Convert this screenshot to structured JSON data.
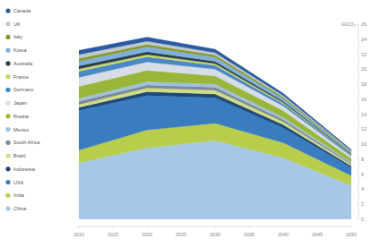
{
  "chart_data": {
    "type": "area",
    "stacked": true,
    "y_label": "GtCO₂",
    "x": [
      2010,
      2020,
      2030,
      2040,
      2050
    ],
    "xlim": [
      2010,
      2050
    ],
    "xticks": [
      2010,
      2015,
      2020,
      2025,
      2030,
      2035,
      2040,
      2045,
      2050
    ],
    "ylim": [
      0,
      26
    ],
    "yticks": [
      0,
      2,
      4,
      6,
      8,
      10,
      12,
      14,
      16,
      18,
      20,
      22,
      24,
      26
    ],
    "grid": false,
    "legend": "left",
    "series": [
      {
        "name": "China",
        "color": "#a7c7e7",
        "values": [
          7.5,
          9.5,
          10.5,
          8.2,
          4.5
        ]
      },
      {
        "name": "India",
        "color": "#b9cd4d",
        "values": [
          1.7,
          2.4,
          2.3,
          2.0,
          1.3
        ]
      },
      {
        "name": "USA",
        "color": "#3a7cc0",
        "values": [
          5.3,
          4.6,
          3.4,
          2.0,
          1.1
        ]
      },
      {
        "name": "Indonesia",
        "color": "#1e4a7a",
        "values": [
          0.4,
          0.5,
          0.5,
          0.4,
          0.2
        ]
      },
      {
        "name": "Brazil",
        "color": "#d2dc80",
        "values": [
          0.4,
          0.5,
          0.5,
          0.4,
          0.2
        ]
      },
      {
        "name": "South Africa",
        "color": "#7a8a99",
        "values": [
          0.4,
          0.4,
          0.4,
          0.3,
          0.15
        ]
      },
      {
        "name": "Mexico",
        "color": "#a0c0e0",
        "values": [
          0.4,
          0.45,
          0.4,
          0.3,
          0.15
        ]
      },
      {
        "name": "Russia",
        "color": "#9ab63a",
        "values": [
          1.6,
          1.5,
          1.1,
          0.9,
          0.5
        ]
      },
      {
        "name": "Japan",
        "color": "#d6dde6",
        "values": [
          1.2,
          1.1,
          0.9,
          0.6,
          0.3
        ]
      },
      {
        "name": "Germany",
        "color": "#4a88c8",
        "values": [
          0.8,
          0.7,
          0.5,
          0.3,
          0.15
        ]
      },
      {
        "name": "France",
        "color": "#c6d66b",
        "values": [
          0.35,
          0.3,
          0.25,
          0.15,
          0.08
        ]
      },
      {
        "name": "Australia",
        "color": "#2f3f4f",
        "values": [
          0.4,
          0.38,
          0.3,
          0.2,
          0.1
        ]
      },
      {
        "name": "Korea",
        "color": "#7fb0dd",
        "values": [
          0.6,
          0.65,
          0.55,
          0.35,
          0.2
        ]
      },
      {
        "name": "Italy",
        "color": "#8a9a2a",
        "values": [
          0.4,
          0.35,
          0.3,
          0.2,
          0.1
        ]
      },
      {
        "name": "UK",
        "color": "#c0c8d0",
        "values": [
          0.5,
          0.4,
          0.3,
          0.2,
          0.1
        ]
      },
      {
        "name": "Canada",
        "color": "#2b5aa0",
        "values": [
          0.55,
          0.55,
          0.45,
          0.3,
          0.15
        ]
      }
    ]
  }
}
